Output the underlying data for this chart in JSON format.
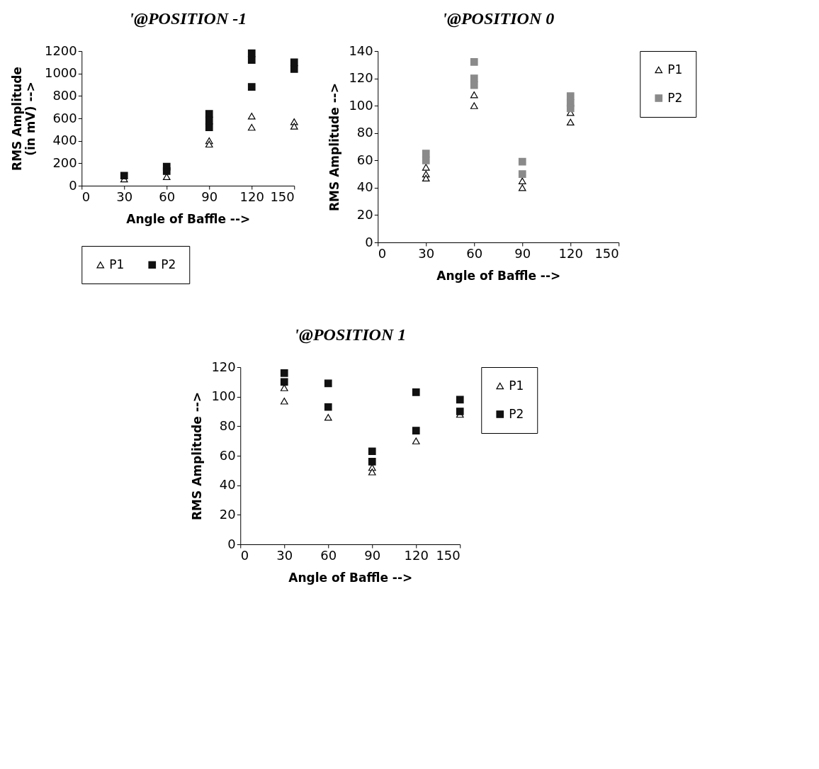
{
  "chart_data": [
    {
      "type": "scatter",
      "title": "'@POSITION -1",
      "xlabel": "Angle of Baffle -->",
      "ylabel": "RMS Amplitude\n(in mV) -->",
      "xlim": [
        0,
        150
      ],
      "xticks": [
        0,
        30,
        60,
        90,
        120,
        150
      ],
      "ylim": [
        0,
        1200
      ],
      "yticks": [
        0,
        200,
        400,
        600,
        800,
        1000,
        1200
      ],
      "legend": "bottom",
      "series": [
        {
          "name": "P1",
          "color": "#000000",
          "marker": "triangle",
          "x": [
            30,
            60,
            90,
            90,
            120,
            120,
            150,
            150
          ],
          "values": [
            60,
            80,
            400,
            370,
            620,
            520,
            570,
            530
          ]
        },
        {
          "name": "P2",
          "color": "#111111",
          "marker": "square",
          "x": [
            30,
            60,
            60,
            90,
            90,
            90,
            120,
            120,
            120,
            150,
            150
          ],
          "values": [
            90,
            170,
            130,
            640,
            580,
            520,
            1180,
            1120,
            880,
            1100,
            1040
          ]
        }
      ]
    },
    {
      "type": "scatter",
      "title": "'@POSITION  0",
      "xlabel": "Angle of Baffle -->",
      "ylabel": "RMS Amplitude -->",
      "xlim": [
        0,
        150
      ],
      "xticks": [
        0,
        30,
        60,
        90,
        120,
        150
      ],
      "ylim": [
        0,
        140
      ],
      "yticks": [
        0,
        20,
        40,
        60,
        80,
        100,
        120,
        140
      ],
      "legend": "right",
      "series": [
        {
          "name": "P1",
          "color": "#000000",
          "marker": "triangle",
          "x": [
            30,
            30,
            30,
            60,
            60,
            90,
            90,
            120,
            120
          ],
          "values": [
            55,
            50,
            47,
            108,
            100,
            45,
            40,
            95,
            88
          ]
        },
        {
          "name": "P2",
          "color": "#8a8a8a",
          "marker": "square",
          "x": [
            30,
            30,
            60,
            60,
            60,
            90,
            90,
            120,
            120,
            120
          ],
          "values": [
            65,
            60,
            132,
            120,
            115,
            59,
            50,
            107,
            102,
            98
          ]
        }
      ]
    },
    {
      "type": "scatter",
      "title": "'@POSITION 1",
      "xlabel": "Angle of Baffle -->",
      "ylabel": "RMS  Amplitude -->",
      "xlim": [
        0,
        150
      ],
      "xticks": [
        0,
        30,
        60,
        90,
        120,
        150
      ],
      "ylim": [
        0,
        120
      ],
      "yticks": [
        0,
        20,
        40,
        60,
        80,
        100,
        120
      ],
      "legend": "right",
      "series": [
        {
          "name": "P1",
          "color": "#000000",
          "marker": "triangle",
          "x": [
            30,
            30,
            60,
            90,
            90,
            120,
            150
          ],
          "values": [
            106,
            97,
            86,
            52,
            49,
            70,
            88
          ]
        },
        {
          "name": "P2",
          "color": "#111111",
          "marker": "square",
          "x": [
            30,
            30,
            60,
            60,
            90,
            90,
            120,
            120,
            150,
            150
          ],
          "values": [
            116,
            110,
            109,
            93,
            63,
            56,
            103,
            77,
            98,
            90
          ]
        }
      ]
    }
  ]
}
